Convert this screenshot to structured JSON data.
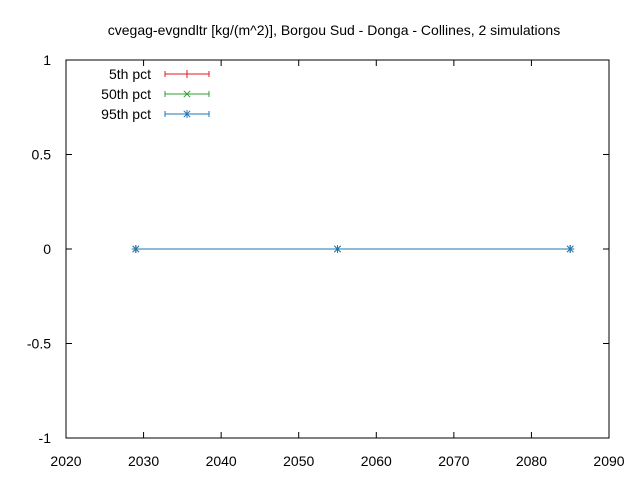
{
  "chart_data": {
    "type": "line",
    "title": "cvegag-evgndltr [kg/(m^2)], Borgou Sud - Donga - Collines, 2 simulations",
    "xlabel": "",
    "ylabel": "",
    "xlim": [
      2020,
      2090
    ],
    "ylim": [
      -1,
      1
    ],
    "x_ticks": [
      2020,
      2030,
      2040,
      2050,
      2060,
      2070,
      2080,
      2090
    ],
    "y_ticks": [
      -1,
      -0.5,
      0,
      0.5,
      1
    ],
    "x_tick_labels": [
      "2020",
      "2030",
      "2040",
      "2050",
      "2060",
      "2070",
      "2080",
      "2090"
    ],
    "y_tick_labels": [
      "-1",
      "-0.5",
      "0",
      "0.5",
      "1"
    ],
    "grid": false,
    "legend_position": "top-left",
    "series": [
      {
        "name": "5th pct",
        "color": "#e41a1c",
        "marker": "plus",
        "x": [
          2029,
          2055,
          2085
        ],
        "y": [
          0,
          0,
          0
        ]
      },
      {
        "name": "50th pct",
        "color": "#2ca02c",
        "marker": "cross",
        "x": [
          2029,
          2055,
          2085
        ],
        "y": [
          0,
          0,
          0
        ]
      },
      {
        "name": "95th pct",
        "color": "#1f77b4",
        "marker": "star",
        "x": [
          2029,
          2055,
          2085
        ],
        "y": [
          0,
          0,
          0
        ]
      }
    ]
  }
}
